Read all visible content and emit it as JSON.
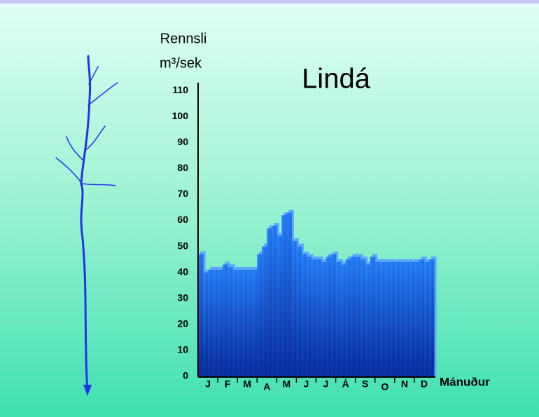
{
  "chart_data": {
    "type": "step-area",
    "title": "Lindá",
    "y_label": [
      "Rennsli",
      "m³/sek"
    ],
    "x_label": "Mánuður",
    "categories": [
      "J",
      "F",
      "M",
      "A",
      "M",
      "J",
      "J",
      "Á",
      "S",
      "O",
      "N",
      "D"
    ],
    "values": [
      [
        47,
        40,
        41,
        41
      ],
      [
        41,
        43,
        42,
        41
      ],
      [
        41,
        41,
        41,
        41
      ],
      [
        47,
        50,
        57,
        58
      ],
      [
        54,
        62,
        63,
        52
      ],
      [
        50,
        47,
        46,
        45
      ],
      [
        45,
        44,
        46,
        47
      ],
      [
        44,
        43,
        45,
        46
      ],
      [
        46,
        45,
        43,
        46
      ],
      [
        44,
        44,
        44,
        44
      ],
      [
        44,
        44,
        44,
        44
      ],
      [
        44,
        45,
        44,
        45
      ]
    ],
    "color": "#1a66e8",
    "ylim": [
      0,
      113
    ],
    "yticks": [
      0,
      10,
      20,
      30,
      40,
      50,
      60,
      70,
      80,
      90,
      100,
      110
    ]
  }
}
